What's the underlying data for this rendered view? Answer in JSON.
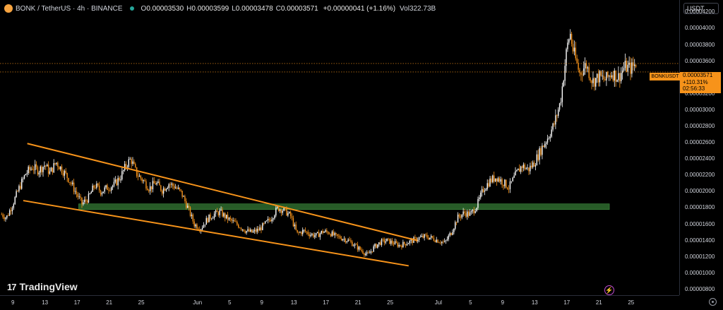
{
  "legend": {
    "symbol": "BONK / TetherUS · 4h · BINANCE",
    "o_label": "O",
    "o_value": "0.00003530",
    "h_label": "H",
    "h_value": "0.00003599",
    "l_label": "L",
    "l_value": "0.00003478",
    "c_label": "C",
    "c_value": "0.00003571",
    "change": "+0.00000041 (+1.16%)",
    "vol_label": "Vol",
    "vol_value": "322.73B"
  },
  "currency_button": "USDT",
  "symbol_tag": "BONKUSDT",
  "price_box": {
    "price": "0.00003571",
    "change": "+110.31%",
    "countdown": "02:56:33"
  },
  "watermark": "TradingView",
  "icons": {
    "logo": "bonk-coin-icon",
    "status": "market-status-dot-icon",
    "flash": "lightning-icon",
    "settings": "gear-icon",
    "brand": "tradingview-logo-icon"
  },
  "colors": {
    "up": "#ffffff",
    "down": "#f7931a",
    "trendline": "#f7931a",
    "zone": "#2e6b2e",
    "accent": "#f7931a"
  },
  "chart_data": {
    "type": "candlestick",
    "title": "",
    "y_ticks": [
      "0.00004200",
      "0.00004000",
      "0.00003800",
      "0.00003600",
      "0.00003400",
      "0.00003200",
      "0.00003000",
      "0.00002800",
      "0.00002600",
      "0.00002400",
      "0.00002200",
      "0.00002000",
      "0.00001800",
      "0.00001600",
      "0.00001400",
      "0.00001200",
      "0.00001000",
      "0.00000800"
    ],
    "ylim": [
      7.3e-06,
      4.35e-05
    ],
    "x_ticks": [
      "9",
      "13",
      "17",
      "21",
      "25",
      "Jun",
      "5",
      "9",
      "13",
      "17",
      "21",
      "25",
      "Jul",
      "5",
      "9",
      "13",
      "17",
      "21",
      "25"
    ],
    "x_tick_days": [
      9,
      13,
      17,
      21,
      25,
      32,
      36,
      40,
      44,
      48,
      52,
      56,
      62,
      66,
      70,
      74,
      78,
      82,
      86
    ],
    "xlim": [
      7.4,
      92.0
    ],
    "x_note": "days counted from May 1 (Jun 1 = 32, Jul 1 = 62)",
    "close_path": [
      {
        "x": 7.6,
        "y": 1.72e-05
      },
      {
        "x": 8.2,
        "y": 1.68e-05
      },
      {
        "x": 9.0,
        "y": 1.85e-05
      },
      {
        "x": 9.8,
        "y": 2.05e-05
      },
      {
        "x": 10.6,
        "y": 2.22e-05
      },
      {
        "x": 11.4,
        "y": 2.3e-05
      },
      {
        "x": 12.2,
        "y": 2.26e-05
      },
      {
        "x": 13.0,
        "y": 2.33e-05
      },
      {
        "x": 13.6,
        "y": 2.23e-05
      },
      {
        "x": 14.4,
        "y": 2.36e-05
      },
      {
        "x": 15.2,
        "y": 2.26e-05
      },
      {
        "x": 16.0,
        "y": 2.15e-05
      },
      {
        "x": 16.8,
        "y": 2e-05
      },
      {
        "x": 17.6,
        "y": 1.85e-05
      },
      {
        "x": 18.4,
        "y": 1.92e-05
      },
      {
        "x": 19.2,
        "y": 2.08e-05
      },
      {
        "x": 20.0,
        "y": 2e-05
      },
      {
        "x": 20.8,
        "y": 2.05e-05
      },
      {
        "x": 21.6,
        "y": 2.08e-05
      },
      {
        "x": 22.4,
        "y": 2.18e-05
      },
      {
        "x": 23.2,
        "y": 2.34e-05
      },
      {
        "x": 23.7,
        "y": 2.4e-05
      },
      {
        "x": 24.4,
        "y": 2.22e-05
      },
      {
        "x": 25.2,
        "y": 2.14e-05
      },
      {
        "x": 26.0,
        "y": 2.04e-05
      },
      {
        "x": 26.8,
        "y": 2.11e-05
      },
      {
        "x": 27.6,
        "y": 2.02e-05
      },
      {
        "x": 28.4,
        "y": 2.1e-05
      },
      {
        "x": 29.2,
        "y": 2.06e-05
      },
      {
        "x": 30.0,
        "y": 1.98e-05
      },
      {
        "x": 30.8,
        "y": 1.8e-05
      },
      {
        "x": 31.6,
        "y": 1.6e-05
      },
      {
        "x": 32.4,
        "y": 1.55e-05
      },
      {
        "x": 33.2,
        "y": 1.66e-05
      },
      {
        "x": 34.0,
        "y": 1.72e-05
      },
      {
        "x": 34.8,
        "y": 1.75e-05
      },
      {
        "x": 35.6,
        "y": 1.68e-05
      },
      {
        "x": 36.4,
        "y": 1.63e-05
      },
      {
        "x": 37.2,
        "y": 1.58e-05
      },
      {
        "x": 38.0,
        "y": 1.52e-05
      },
      {
        "x": 38.8,
        "y": 1.5e-05
      },
      {
        "x": 39.6,
        "y": 1.53e-05
      },
      {
        "x": 40.4,
        "y": 1.6e-05
      },
      {
        "x": 41.2,
        "y": 1.68e-05
      },
      {
        "x": 42.0,
        "y": 1.8e-05
      },
      {
        "x": 42.8,
        "y": 1.77e-05
      },
      {
        "x": 43.6,
        "y": 1.7e-05
      },
      {
        "x": 44.4,
        "y": 1.48e-05
      },
      {
        "x": 45.2,
        "y": 1.52e-05
      },
      {
        "x": 46.0,
        "y": 1.48e-05
      },
      {
        "x": 46.8,
        "y": 1.46e-05
      },
      {
        "x": 47.6,
        "y": 1.51e-05
      },
      {
        "x": 48.4,
        "y": 1.5e-05
      },
      {
        "x": 49.2,
        "y": 1.45e-05
      },
      {
        "x": 50.0,
        "y": 1.43e-05
      },
      {
        "x": 50.8,
        "y": 1.4e-05
      },
      {
        "x": 51.6,
        "y": 1.34e-05
      },
      {
        "x": 52.4,
        "y": 1.28e-05
      },
      {
        "x": 53.2,
        "y": 1.22e-05
      },
      {
        "x": 54.0,
        "y": 1.32e-05
      },
      {
        "x": 54.8,
        "y": 1.38e-05
      },
      {
        "x": 55.6,
        "y": 1.4e-05
      },
      {
        "x": 56.4,
        "y": 1.37e-05
      },
      {
        "x": 57.2,
        "y": 1.34e-05
      },
      {
        "x": 58.0,
        "y": 1.37e-05
      },
      {
        "x": 58.8,
        "y": 1.4e-05
      },
      {
        "x": 59.6,
        "y": 1.43e-05
      },
      {
        "x": 60.4,
        "y": 1.45e-05
      },
      {
        "x": 61.2,
        "y": 1.43e-05
      },
      {
        "x": 62.0,
        "y": 1.4e-05
      },
      {
        "x": 62.8,
        "y": 1.37e-05
      },
      {
        "x": 63.6,
        "y": 1.5e-05
      },
      {
        "x": 64.4,
        "y": 1.68e-05
      },
      {
        "x": 65.2,
        "y": 1.74e-05
      },
      {
        "x": 66.0,
        "y": 1.72e-05
      },
      {
        "x": 66.8,
        "y": 1.83e-05
      },
      {
        "x": 67.6,
        "y": 2.03e-05
      },
      {
        "x": 68.4,
        "y": 2.13e-05
      },
      {
        "x": 69.2,
        "y": 2.18e-05
      },
      {
        "x": 70.0,
        "y": 2.12e-05
      },
      {
        "x": 70.8,
        "y": 2.05e-05
      },
      {
        "x": 71.6,
        "y": 2.2e-05
      },
      {
        "x": 72.4,
        "y": 2.32e-05
      },
      {
        "x": 73.2,
        "y": 2.27e-05
      },
      {
        "x": 74.0,
        "y": 2.36e-05
      },
      {
        "x": 74.8,
        "y": 2.52e-05
      },
      {
        "x": 75.6,
        "y": 2.66e-05
      },
      {
        "x": 76.4,
        "y": 2.82e-05
      },
      {
        "x": 77.2,
        "y": 3.1e-05
      },
      {
        "x": 77.6,
        "y": 3.42e-05
      },
      {
        "x": 78.0,
        "y": 3.75e-05
      },
      {
        "x": 78.4,
        "y": 3.95e-05
      },
      {
        "x": 78.8,
        "y": 3.72e-05
      },
      {
        "x": 79.6,
        "y": 3.45e-05
      },
      {
        "x": 80.4,
        "y": 3.56e-05
      },
      {
        "x": 81.2,
        "y": 3.35e-05
      },
      {
        "x": 82.0,
        "y": 3.41e-05
      },
      {
        "x": 82.8,
        "y": 3.37e-05
      },
      {
        "x": 83.6,
        "y": 3.46e-05
      },
      {
        "x": 84.4,
        "y": 3.4e-05
      },
      {
        "x": 85.2,
        "y": 3.53e-05
      },
      {
        "x": 86.0,
        "y": 3.51e-05
      },
      {
        "x": 86.6,
        "y": 3.57e-05
      }
    ],
    "trendlines": [
      {
        "name": "",
        "x1": 10.8,
        "y1": 2.59e-05,
        "x2": 59.4,
        "y2": 1.4e-05
      },
      {
        "name": "",
        "x1": 10.3,
        "y1": 1.89e-05,
        "x2": 58.3,
        "y2": 1.09e-05
      }
    ],
    "zone": {
      "x1": 17.2,
      "x2": 83.3,
      "y1": 1.78e-05,
      "y2": 1.85e-05
    },
    "last_price": 3.571e-05,
    "last_price_dotted": true,
    "grid": false
  }
}
